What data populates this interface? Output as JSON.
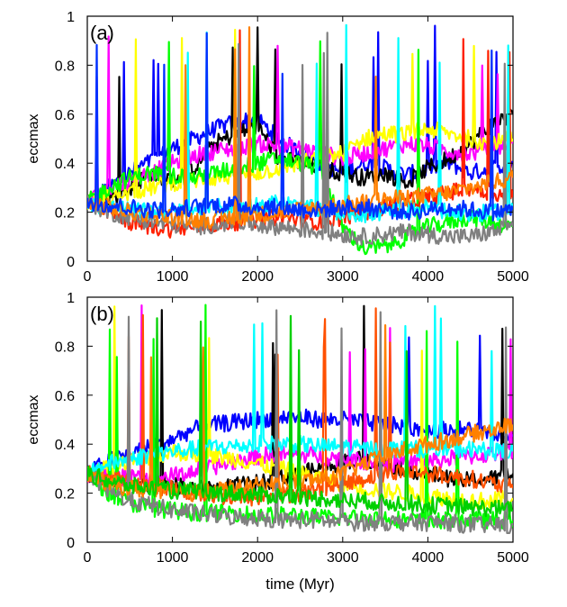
{
  "chart_data": [
    {
      "type": "line",
      "panel_label": "(a)",
      "xlabel": "",
      "ylabel": "eccmax",
      "xlim": [
        0,
        5000
      ],
      "ylim": [
        0,
        1
      ],
      "xticks": [
        0,
        1000,
        2000,
        3000,
        4000,
        5000
      ],
      "yticks": [
        0,
        0.2,
        0.4,
        0.6,
        0.8,
        1
      ],
      "xtick_labels": [
        "0",
        "1000",
        "2000",
        "3000",
        "4000",
        "5000"
      ],
      "ytick_labels": [
        "0",
        "0.2",
        "0.4",
        "0.6",
        "0.8",
        "1"
      ],
      "grid": false,
      "legend": "none",
      "x_unit": "Myr",
      "series": [
        {
          "color": "#0000ff",
          "x": [
            0,
            250,
            500,
            750,
            1000,
            1250,
            1500,
            1750,
            2000,
            2250,
            2500,
            2750,
            3000,
            3250,
            3500,
            3750,
            4000,
            4250,
            4500,
            4750,
            5000
          ],
          "y": [
            0.24,
            0.3,
            0.36,
            0.41,
            0.46,
            0.5,
            0.54,
            0.57,
            0.58,
            0.5,
            0.44,
            0.4,
            0.36,
            0.4,
            0.38,
            0.35,
            0.38,
            0.4,
            0.36,
            0.38,
            0.4
          ]
        },
        {
          "color": "#000000",
          "x": [
            0,
            250,
            500,
            750,
            1000,
            1250,
            1500,
            1750,
            2000,
            2250,
            2500,
            2750,
            3000,
            3250,
            3500,
            3750,
            4000,
            4250,
            4500,
            4750,
            5000
          ],
          "y": [
            0.24,
            0.25,
            0.3,
            0.36,
            0.33,
            0.38,
            0.48,
            0.52,
            0.55,
            0.42,
            0.4,
            0.38,
            0.36,
            0.34,
            0.36,
            0.32,
            0.38,
            0.42,
            0.48,
            0.56,
            0.6
          ]
        },
        {
          "color": "#ff00ff",
          "x": [
            0,
            250,
            500,
            750,
            1000,
            1250,
            1500,
            1750,
            2000,
            2250,
            2500,
            2750,
            3000,
            3250,
            3500,
            3750,
            4000,
            4250,
            4500,
            4750,
            5000
          ],
          "y": [
            0.24,
            0.3,
            0.33,
            0.36,
            0.4,
            0.43,
            0.45,
            0.46,
            0.48,
            0.47,
            0.46,
            0.44,
            0.42,
            0.44,
            0.46,
            0.48,
            0.47,
            0.45,
            0.44,
            0.46,
            0.48
          ]
        },
        {
          "color": "#ffff00",
          "x": [
            0,
            250,
            500,
            750,
            1000,
            1250,
            1500,
            1750,
            2000,
            2250,
            2500,
            2750,
            3000,
            3250,
            3500,
            3750,
            4000,
            4250,
            4500,
            4750,
            5000
          ],
          "y": [
            0.24,
            0.26,
            0.28,
            0.3,
            0.32,
            0.33,
            0.34,
            0.35,
            0.36,
            0.38,
            0.4,
            0.42,
            0.44,
            0.5,
            0.52,
            0.52,
            0.54,
            0.52,
            0.5,
            0.48,
            0.5
          ]
        },
        {
          "color": "#00ff00",
          "x": [
            0,
            250,
            500,
            750,
            1000,
            1250,
            1500,
            1750,
            2000,
            2250,
            2500,
            2750,
            3000,
            3250,
            3500,
            3750,
            4000,
            4250,
            4500,
            4750,
            5000
          ],
          "y": [
            0.24,
            0.3,
            0.34,
            0.36,
            0.35,
            0.34,
            0.36,
            0.38,
            0.4,
            0.42,
            0.4,
            0.38,
            0.14,
            0.05,
            0.06,
            0.1,
            0.14,
            0.16,
            0.18,
            0.16,
            0.14
          ]
        },
        {
          "color": "#ff2000",
          "x": [
            0,
            250,
            500,
            750,
            1000,
            1250,
            1500,
            1750,
            2000,
            2250,
            2500,
            2750,
            3000,
            3250,
            3500,
            3750,
            4000,
            4250,
            4500,
            4750,
            5000
          ],
          "y": [
            0.24,
            0.2,
            0.16,
            0.14,
            0.13,
            0.14,
            0.15,
            0.16,
            0.17,
            0.18,
            0.17,
            0.16,
            0.18,
            0.2,
            0.22,
            0.24,
            0.26,
            0.28,
            0.3,
            0.28,
            0.26
          ]
        },
        {
          "color": "#00ffff",
          "x": [
            0,
            250,
            500,
            750,
            1000,
            1250,
            1500,
            1750,
            2000,
            2250,
            2500,
            2750,
            3000,
            3250,
            3500,
            3750,
            4000,
            4250,
            4500,
            4750,
            5000
          ],
          "y": [
            0.24,
            0.22,
            0.21,
            0.2,
            0.2,
            0.21,
            0.22,
            0.22,
            0.23,
            0.24,
            0.22,
            0.21,
            0.2,
            0.19,
            0.2,
            0.21,
            0.22,
            0.2,
            0.19,
            0.2,
            0.21
          ]
        },
        {
          "color": "#808080",
          "x": [
            0,
            250,
            500,
            750,
            1000,
            1250,
            1500,
            1750,
            2000,
            2250,
            2500,
            2750,
            3000,
            3250,
            3500,
            3750,
            4000,
            4250,
            4500,
            4750,
            5000
          ],
          "y": [
            0.24,
            0.2,
            0.18,
            0.16,
            0.15,
            0.14,
            0.15,
            0.16,
            0.15,
            0.14,
            0.13,
            0.12,
            0.11,
            0.1,
            0.11,
            0.12,
            0.11,
            0.1,
            0.1,
            0.12,
            0.14
          ]
        },
        {
          "color": "#ff8000",
          "x": [
            0,
            250,
            500,
            750,
            1000,
            1250,
            1500,
            1750,
            2000,
            2250,
            2500,
            2750,
            3000,
            3250,
            3500,
            3750,
            4000,
            4250,
            4500,
            4750,
            5000
          ],
          "y": [
            0.24,
            0.22,
            0.2,
            0.19,
            0.18,
            0.17,
            0.17,
            0.18,
            0.19,
            0.2,
            0.21,
            0.22,
            0.23,
            0.24,
            0.25,
            0.26,
            0.27,
            0.28,
            0.3,
            0.32,
            0.34
          ]
        },
        {
          "color": "#0030ff",
          "x": [
            0,
            250,
            500,
            750,
            1000,
            1250,
            1500,
            1750,
            2000,
            2250,
            2500,
            2750,
            3000,
            3250,
            3500,
            3750,
            4000,
            4250,
            4500,
            4750,
            5000
          ],
          "y": [
            0.24,
            0.23,
            0.22,
            0.21,
            0.21,
            0.22,
            0.23,
            0.23,
            0.22,
            0.22,
            0.21,
            0.21,
            0.22,
            0.22,
            0.21,
            0.2,
            0.21,
            0.22,
            0.21,
            0.2,
            0.21
          ]
        }
      ]
    },
    {
      "type": "line",
      "panel_label": "(b)",
      "xlabel": "time (Myr)",
      "ylabel": "eccmax",
      "xlim": [
        0,
        5000
      ],
      "ylim": [
        0,
        1
      ],
      "xticks": [
        0,
        1000,
        2000,
        3000,
        4000,
        5000
      ],
      "yticks": [
        0,
        0.2,
        0.4,
        0.6,
        0.8,
        1
      ],
      "xtick_labels": [
        "0",
        "1000",
        "2000",
        "3000",
        "4000",
        "5000"
      ],
      "ytick_labels": [
        "0",
        "0.2",
        "0.4",
        "0.6",
        "0.8",
        "1"
      ],
      "grid": false,
      "legend": "none",
      "series": [
        {
          "color": "#0000ff",
          "x": [
            0,
            250,
            500,
            750,
            1000,
            1250,
            1500,
            1750,
            2000,
            2250,
            2500,
            2750,
            3000,
            3250,
            3500,
            3750,
            4000,
            4250,
            4500,
            4750,
            5000
          ],
          "y": [
            0.28,
            0.33,
            0.36,
            0.39,
            0.42,
            0.46,
            0.48,
            0.49,
            0.5,
            0.51,
            0.51,
            0.5,
            0.5,
            0.49,
            0.48,
            0.47,
            0.46,
            0.46,
            0.46,
            0.45,
            0.44
          ]
        },
        {
          "color": "#000000",
          "x": [
            0,
            250,
            500,
            750,
            1000,
            1250,
            1500,
            1750,
            2000,
            2250,
            2500,
            2750,
            3000,
            3250,
            3500,
            3750,
            4000,
            4250,
            4500,
            4750,
            5000
          ],
          "y": [
            0.28,
            0.26,
            0.25,
            0.24,
            0.23,
            0.22,
            0.22,
            0.23,
            0.24,
            0.26,
            0.28,
            0.3,
            0.33,
            0.34,
            0.32,
            0.3,
            0.28,
            0.26,
            0.25,
            0.26,
            0.28
          ]
        },
        {
          "color": "#ff00ff",
          "x": [
            0,
            250,
            500,
            750,
            1000,
            1250,
            1500,
            1750,
            2000,
            2250,
            2500,
            2750,
            3000,
            3250,
            3500,
            3750,
            4000,
            4250,
            4500,
            4750,
            5000
          ],
          "y": [
            0.28,
            0.27,
            0.26,
            0.26,
            0.27,
            0.29,
            0.31,
            0.33,
            0.35,
            0.36,
            0.36,
            0.35,
            0.34,
            0.33,
            0.32,
            0.32,
            0.33,
            0.34,
            0.35,
            0.36,
            0.37
          ]
        },
        {
          "color": "#ffff00",
          "x": [
            0,
            250,
            500,
            750,
            1000,
            1250,
            1500,
            1750,
            2000,
            2250,
            2500,
            2750,
            3000,
            3250,
            3500,
            3750,
            4000,
            4250,
            4500,
            4750,
            5000
          ],
          "y": [
            0.28,
            0.3,
            0.33,
            0.35,
            0.37,
            0.36,
            0.35,
            0.34,
            0.32,
            0.3,
            0.28,
            0.26,
            0.24,
            0.22,
            0.21,
            0.2,
            0.19,
            0.18,
            0.17,
            0.17,
            0.18
          ]
        },
        {
          "color": "#00ff00",
          "x": [
            0,
            250,
            500,
            750,
            1000,
            1250,
            1500,
            1750,
            2000,
            2250,
            2500,
            2750,
            3000,
            3250,
            3500,
            3750,
            4000,
            4250,
            4500,
            4750,
            5000
          ],
          "y": [
            0.28,
            0.2,
            0.16,
            0.14,
            0.13,
            0.12,
            0.12,
            0.12,
            0.11,
            0.11,
            0.11,
            0.1,
            0.1,
            0.1,
            0.1,
            0.09,
            0.09,
            0.09,
            0.09,
            0.09,
            0.09
          ]
        },
        {
          "color": "#ff5000",
          "x": [
            0,
            250,
            500,
            750,
            1000,
            1250,
            1500,
            1750,
            2000,
            2250,
            2500,
            2750,
            3000,
            3250,
            3500,
            3750,
            4000,
            4250,
            4500,
            4750,
            5000
          ],
          "y": [
            0.28,
            0.26,
            0.24,
            0.23,
            0.22,
            0.2,
            0.19,
            0.18,
            0.18,
            0.19,
            0.2,
            0.22,
            0.24,
            0.26,
            0.28,
            0.29,
            0.28,
            0.27,
            0.26,
            0.24,
            0.22
          ]
        },
        {
          "color": "#00ffff",
          "x": [
            0,
            250,
            500,
            750,
            1000,
            1250,
            1500,
            1750,
            2000,
            2250,
            2500,
            2750,
            3000,
            3250,
            3500,
            3750,
            4000,
            4250,
            4500,
            4750,
            5000
          ],
          "y": [
            0.28,
            0.32,
            0.34,
            0.36,
            0.37,
            0.38,
            0.39,
            0.39,
            0.4,
            0.4,
            0.4,
            0.39,
            0.39,
            0.38,
            0.38,
            0.38,
            0.38,
            0.38,
            0.38,
            0.37,
            0.37
          ]
        },
        {
          "color": "#808080",
          "x": [
            0,
            250,
            500,
            750,
            1000,
            1250,
            1500,
            1750,
            2000,
            2250,
            2500,
            2750,
            3000,
            3250,
            3500,
            3750,
            4000,
            4250,
            4500,
            4750,
            5000
          ],
          "y": [
            0.28,
            0.21,
            0.17,
            0.15,
            0.13,
            0.12,
            0.11,
            0.1,
            0.1,
            0.09,
            0.09,
            0.09,
            0.08,
            0.08,
            0.08,
            0.08,
            0.08,
            0.08,
            0.07,
            0.07,
            0.07
          ]
        },
        {
          "color": "#ff8000",
          "x": [
            0,
            250,
            500,
            750,
            1000,
            1250,
            1500,
            1750,
            2000,
            2250,
            2500,
            2750,
            3000,
            3250,
            3500,
            3750,
            4000,
            4250,
            4500,
            4750,
            5000
          ],
          "y": [
            0.28,
            0.24,
            0.22,
            0.21,
            0.2,
            0.2,
            0.21,
            0.22,
            0.23,
            0.24,
            0.25,
            0.26,
            0.28,
            0.32,
            0.35,
            0.38,
            0.4,
            0.42,
            0.44,
            0.46,
            0.48
          ]
        },
        {
          "color": "#00d000",
          "x": [
            0,
            250,
            500,
            750,
            1000,
            1250,
            1500,
            1750,
            2000,
            2250,
            2500,
            2750,
            3000,
            3250,
            3500,
            3750,
            4000,
            4250,
            4500,
            4750,
            5000
          ],
          "y": [
            0.28,
            0.25,
            0.23,
            0.22,
            0.21,
            0.21,
            0.2,
            0.2,
            0.19,
            0.19,
            0.18,
            0.18,
            0.17,
            0.17,
            0.16,
            0.16,
            0.15,
            0.15,
            0.14,
            0.14,
            0.13
          ]
        }
      ]
    }
  ]
}
